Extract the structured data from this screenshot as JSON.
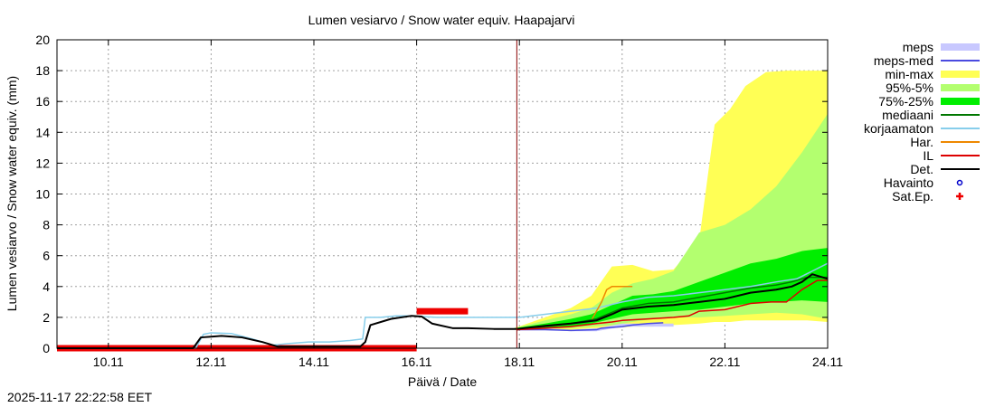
{
  "chart_data": {
    "type": "line",
    "title": "Lumen vesiarvo / Snow water equiv.  Haapajarvi",
    "xlabel": "Päivä / Date",
    "ylabel": "Lumen vesiarvo / Snow water equiv. (mm)",
    "timestamp": "2025-11-17 22:22:58 EET",
    "xlim": [
      9.0,
      24.0
    ],
    "ylim": [
      0,
      20
    ],
    "y_ticks": [
      0,
      2,
      4,
      6,
      8,
      10,
      12,
      14,
      16,
      18,
      20
    ],
    "x_ticks": [
      {
        "v": 10,
        "label": "10.11"
      },
      {
        "v": 12,
        "label": "12.11"
      },
      {
        "v": 14,
        "label": "14.11"
      },
      {
        "v": 16,
        "label": "16.11"
      },
      {
        "v": 18,
        "label": "18.11"
      },
      {
        "v": 20,
        "label": "20.11"
      },
      {
        "v": 22,
        "label": "22.11"
      },
      {
        "v": 24,
        "label": "24.11"
      }
    ],
    "now_line": 17.95,
    "grid": true,
    "legend_position": "right",
    "bands": [
      {
        "name": "min-max",
        "color": "#ffff55",
        "x": [
          17.9,
          18.5,
          19.0,
          19.4,
          19.8,
          20.2,
          20.6,
          21.0,
          21.5,
          21.8,
          22.1,
          22.4,
          22.8,
          23.2,
          23.6,
          24.0
        ],
        "lower": [
          1.2,
          1.2,
          1.2,
          1.3,
          1.3,
          1.4,
          1.4,
          1.5,
          1.6,
          1.7,
          1.7,
          1.8,
          1.8,
          1.8,
          1.8,
          1.7
        ],
        "upper": [
          1.3,
          2.0,
          2.6,
          3.4,
          5.3,
          5.4,
          5.0,
          5.1,
          7.0,
          14.5,
          15.5,
          17.0,
          17.9,
          18.0,
          18.0,
          18.0
        ]
      },
      {
        "name": "95%-5%",
        "color": "#b3ff6f",
        "x": [
          17.9,
          18.5,
          19.0,
          19.4,
          19.8,
          20.2,
          20.6,
          21.0,
          21.5,
          22.0,
          22.5,
          23.0,
          23.5,
          24.0
        ],
        "lower": [
          1.2,
          1.3,
          1.3,
          1.4,
          1.5,
          1.7,
          1.9,
          2.0,
          2.0,
          2.1,
          2.2,
          2.3,
          2.2,
          1.9
        ],
        "upper": [
          1.3,
          1.8,
          2.2,
          2.6,
          3.6,
          4.2,
          4.5,
          5.0,
          7.5,
          8.0,
          9.0,
          10.5,
          12.7,
          15.2
        ]
      },
      {
        "name": "75%-25%",
        "color": "#00ee00",
        "x": [
          17.9,
          18.5,
          19.0,
          19.4,
          19.8,
          20.2,
          20.6,
          21.0,
          21.5,
          22.0,
          22.5,
          23.0,
          23.5,
          24.0
        ],
        "lower": [
          1.2,
          1.3,
          1.4,
          1.6,
          1.9,
          2.2,
          2.3,
          2.4,
          2.5,
          2.7,
          2.9,
          3.0,
          3.1,
          3.0
        ],
        "upper": [
          1.3,
          1.6,
          1.9,
          2.2,
          2.8,
          3.4,
          3.5,
          3.7,
          4.3,
          4.9,
          5.5,
          5.8,
          6.3,
          6.5
        ]
      }
    ],
    "meps_band": {
      "name": "meps",
      "color": "#c8c8ff",
      "x": [
        17.95,
        18.5,
        19.0,
        19.5,
        20.0,
        20.4,
        20.8,
        21.0
      ],
      "lower": [
        1.2,
        1.2,
        1.1,
        1.1,
        1.4,
        1.4,
        1.4,
        1.4
      ],
      "upper": [
        1.3,
        1.3,
        1.2,
        1.3,
        1.6,
        1.6,
        1.6,
        1.6
      ]
    },
    "series": [
      {
        "name": "korjaamaton",
        "color": "#87ceeb",
        "width": 1.5,
        "x": [
          9.0,
          11.7,
          11.85,
          12.0,
          12.4,
          12.8,
          13.2,
          13.5,
          13.9,
          14.3,
          14.7,
          14.95,
          15.0,
          15.3,
          15.6,
          15.9,
          16.1,
          16.4,
          17.0,
          17.5,
          18.0,
          18.5,
          19.0,
          19.5,
          20.0,
          20.5,
          21.0,
          21.5,
          22.0,
          22.5,
          23.0,
          23.4,
          23.7,
          24.0
        ],
        "y": [
          0.0,
          0.0,
          0.9,
          1.0,
          0.95,
          0.6,
          0.2,
          0.3,
          0.4,
          0.4,
          0.5,
          0.6,
          2.0,
          2.0,
          2.1,
          2.1,
          2.05,
          2.0,
          2.0,
          2.0,
          2.0,
          2.2,
          2.4,
          2.6,
          3.0,
          3.3,
          3.4,
          3.6,
          3.8,
          4.0,
          4.3,
          4.5,
          5.0,
          5.5
        ]
      },
      {
        "name": "meps-med",
        "color": "#4a4ae0",
        "width": 1.5,
        "x": [
          17.95,
          18.5,
          19.0,
          19.5,
          19.6,
          20.0,
          20.2,
          20.5,
          20.8
        ],
        "y": [
          1.2,
          1.2,
          1.15,
          1.2,
          1.3,
          1.4,
          1.5,
          1.6,
          1.65
        ]
      },
      {
        "name": "Har.",
        "color": "#ee8800",
        "width": 1.5,
        "x": [
          17.95,
          18.5,
          19.0,
          19.4,
          19.6,
          19.7,
          19.8,
          20.0,
          20.2
        ],
        "y": [
          1.2,
          1.4,
          1.6,
          1.8,
          3.0,
          3.8,
          4.0,
          4.0,
          4.0
        ]
      },
      {
        "name": "mediaani",
        "color": "#007700",
        "width": 1.5,
        "x": [
          17.95,
          18.5,
          19.0,
          19.5,
          20.0,
          20.5,
          21.0,
          21.5,
          22.0,
          22.5,
          23.0,
          23.3,
          23.6,
          24.0
        ],
        "y": [
          1.2,
          1.4,
          1.6,
          1.9,
          2.6,
          2.9,
          3.0,
          3.3,
          3.6,
          3.9,
          4.1,
          4.3,
          4.6,
          4.6
        ]
      },
      {
        "name": "IL",
        "color": "#dd0000",
        "width": 1.5,
        "x": [
          17.95,
          18.5,
          19.0,
          19.5,
          19.8,
          20.0,
          20.5,
          21.0,
          21.3,
          21.5,
          22.0,
          22.5,
          22.9,
          23.2,
          23.5,
          23.8,
          24.0
        ],
        "y": [
          1.2,
          1.3,
          1.4,
          1.6,
          1.7,
          1.8,
          1.9,
          2.0,
          2.1,
          2.4,
          2.5,
          2.9,
          3.0,
          3.0,
          3.8,
          4.4,
          4.4
        ]
      },
      {
        "name": "Det.",
        "color": "#000000",
        "width": 2,
        "x": [
          9.0,
          11.65,
          11.8,
          12.0,
          12.2,
          12.6,
          13.0,
          13.3,
          14.9,
          15.0,
          15.1,
          15.5,
          15.9,
          16.1,
          16.3,
          16.7,
          17.0,
          17.5,
          17.95,
          18.5,
          19.0,
          19.5,
          19.8,
          20.0,
          20.5,
          21.0,
          21.5,
          22.0,
          22.5,
          23.0,
          23.3,
          23.5,
          23.7,
          24.0
        ],
        "y": [
          0.0,
          0.0,
          0.7,
          0.75,
          0.8,
          0.7,
          0.4,
          0.1,
          0.1,
          0.4,
          1.5,
          1.9,
          2.1,
          2.05,
          1.6,
          1.3,
          1.3,
          1.25,
          1.25,
          1.45,
          1.6,
          1.8,
          2.2,
          2.5,
          2.7,
          2.8,
          3.0,
          3.2,
          3.6,
          3.8,
          4.0,
          4.3,
          4.8,
          4.5
        ]
      }
    ],
    "sat_ep": [
      {
        "x_start": 9.0,
        "x_end": 16.0,
        "y": 0.0
      },
      {
        "x_start": 16.0,
        "x_end": 17.0,
        "y": 2.4
      }
    ],
    "legend": [
      {
        "label": "meps",
        "kind": "box",
        "color": "#c8c8ff"
      },
      {
        "label": "meps-med",
        "kind": "line",
        "color": "#4a4ae0"
      },
      {
        "label": "min-max",
        "kind": "box",
        "color": "#ffff55"
      },
      {
        "label": "95%-5%",
        "kind": "box",
        "color": "#b3ff6f"
      },
      {
        "label": "75%-25%",
        "kind": "box",
        "color": "#00ee00"
      },
      {
        "label": "mediaani",
        "kind": "line",
        "color": "#007700"
      },
      {
        "label": "korjaamaton",
        "kind": "line",
        "color": "#87ceeb"
      },
      {
        "label": "Har.",
        "kind": "line",
        "color": "#ee8800"
      },
      {
        "label": "IL",
        "kind": "line",
        "color": "#dd0000"
      },
      {
        "label": "Det.",
        "kind": "line",
        "color": "#000000"
      },
      {
        "label": "Havainto",
        "kind": "circle",
        "color": "#0000cc"
      },
      {
        "label": "Sat.Ep.",
        "kind": "plus",
        "color": "#ee0000"
      }
    ]
  }
}
